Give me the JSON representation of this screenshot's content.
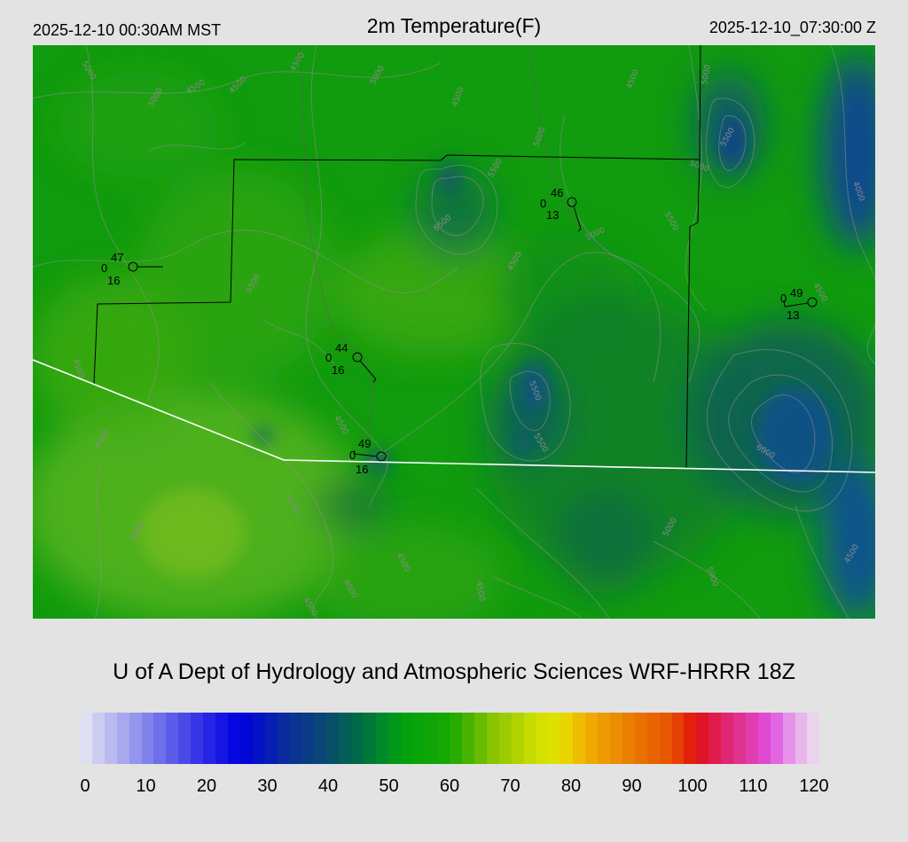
{
  "header": {
    "valid_local": "2025-12-10 00:30AM MST",
    "title": "2m Temperature(F)",
    "valid_utc": "2025-12-10_07:30:00 Z"
  },
  "footer": {
    "credit": "U of A Dept of Hydrology and Atmospheric Sciences WRF-HRRR 18Z"
  },
  "colorbar": {
    "min": 0,
    "max": 120,
    "ticks": [
      "0",
      "10",
      "20",
      "30",
      "40",
      "50",
      "60",
      "70",
      "80",
      "90",
      "100",
      "110",
      "120"
    ],
    "color_stops": [
      {
        "value": 0,
        "color": "#e8e8f2"
      },
      {
        "value": 10,
        "color": "#8c8cee"
      },
      {
        "value": 20,
        "color": "#2c2ce6"
      },
      {
        "value": 26,
        "color": "#0000e0"
      },
      {
        "value": 33,
        "color": "#0a2aa0"
      },
      {
        "value": 40,
        "color": "#0a4a70"
      },
      {
        "value": 45,
        "color": "#006a48"
      },
      {
        "value": 52,
        "color": "#00a010"
      },
      {
        "value": 60,
        "color": "#18a800"
      },
      {
        "value": 67,
        "color": "#88c400"
      },
      {
        "value": 74,
        "color": "#cfe000"
      },
      {
        "value": 78,
        "color": "#e6e000"
      },
      {
        "value": 82,
        "color": "#f0b000"
      },
      {
        "value": 90,
        "color": "#e87800"
      },
      {
        "value": 96,
        "color": "#e85000"
      },
      {
        "value": 100,
        "color": "#e01010"
      },
      {
        "value": 104,
        "color": "#e02060"
      },
      {
        "value": 112,
        "color": "#e050e0"
      },
      {
        "value": 116,
        "color": "#e8a8ea"
      },
      {
        "value": 120,
        "color": "#ece0ee"
      }
    ]
  },
  "stations": [
    {
      "temp": "47",
      "left": "0",
      "bottom": "16"
    },
    {
      "temp": "46",
      "left": "0",
      "bottom": "13"
    },
    {
      "temp": "49",
      "left": "0",
      "bottom": "13"
    },
    {
      "temp": "44",
      "left": "0",
      "bottom": "16"
    },
    {
      "temp": "49",
      "left": "0",
      "bottom": "16"
    }
  ],
  "contour_labels": [
    "4000",
    "4500",
    "5000",
    "5500",
    "6000",
    "6500"
  ]
}
